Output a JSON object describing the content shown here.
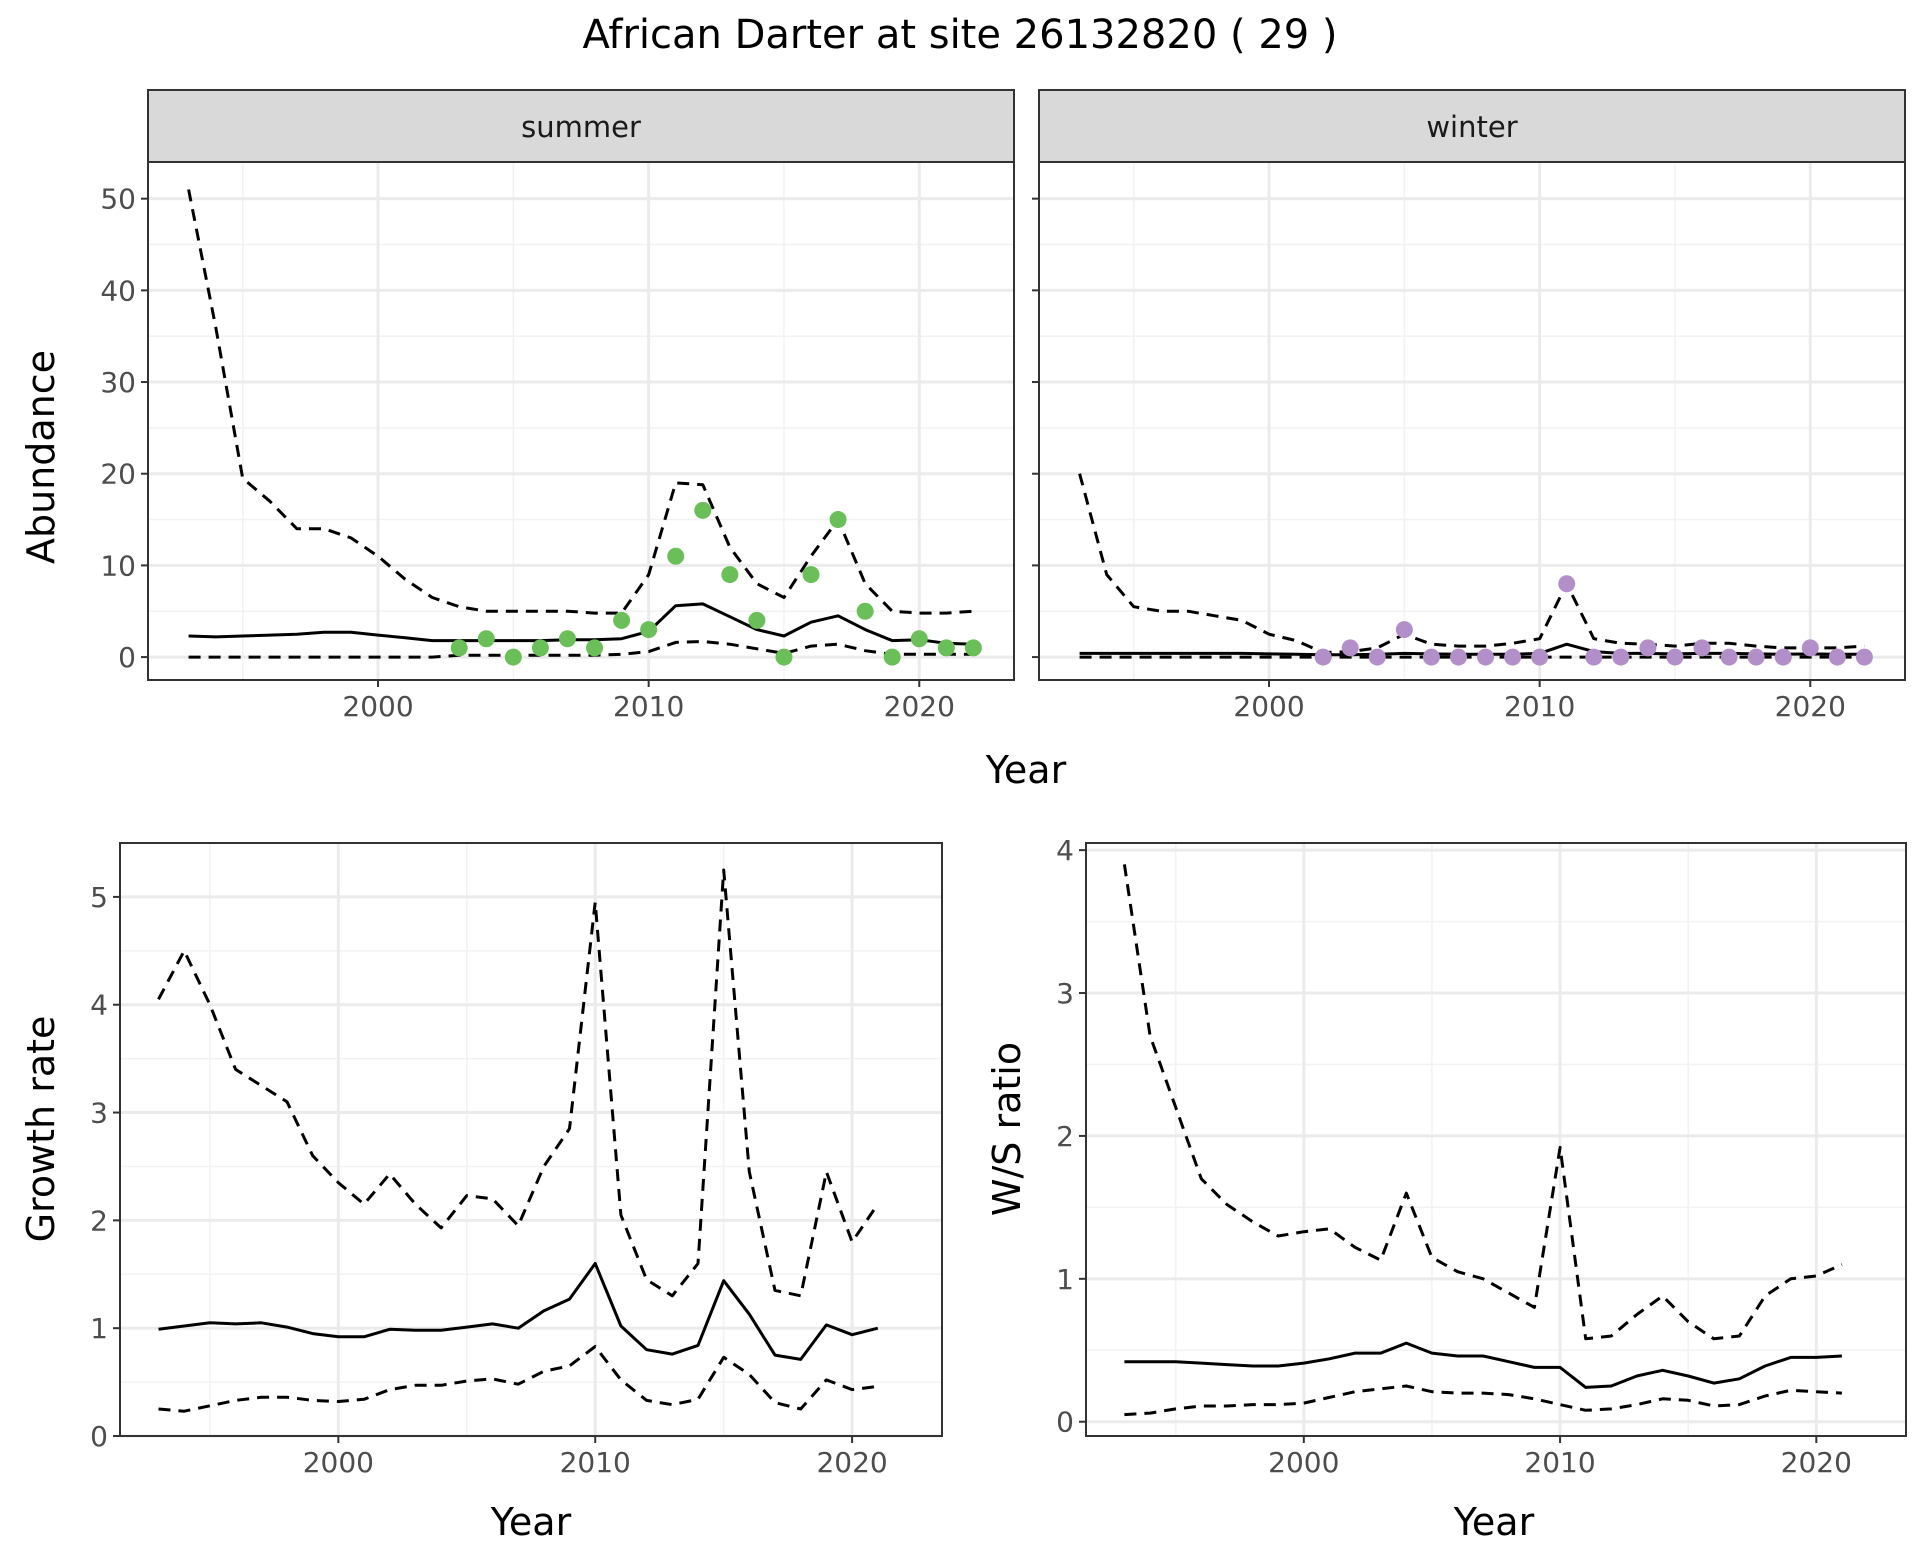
{
  "title": "African Darter at site 26132820 ( 29 )",
  "chart_data": [
    {
      "type": "line",
      "panel": "abundance",
      "strips": [
        "summer",
        "winter"
      ],
      "xlabel": "Year",
      "ylabel": "Abundance",
      "xlim": [
        1991.5,
        2023.5
      ],
      "ylim": [
        -2.5,
        54
      ],
      "xticks": [
        2000,
        2010,
        2020
      ],
      "yticks": [
        0,
        10,
        20,
        30,
        40,
        50
      ],
      "grid": true,
      "facets": [
        {
          "name": "summer",
          "point_color": "#6abf59",
          "x": [
            1993,
            1994,
            1995,
            1996,
            1997,
            1998,
            1999,
            2000,
            2001,
            2002,
            2003,
            2004,
            2005,
            2006,
            2007,
            2008,
            2009,
            2010,
            2011,
            2012,
            2013,
            2014,
            2015,
            2016,
            2017,
            2018,
            2019,
            2020,
            2021,
            2022
          ],
          "mean": [
            2.3,
            2.2,
            2.3,
            2.4,
            2.5,
            2.7,
            2.7,
            2.4,
            2.1,
            1.8,
            1.8,
            1.8,
            1.8,
            1.8,
            1.9,
            1.9,
            2.0,
            2.8,
            5.6,
            5.8,
            4.4,
            3.0,
            2.3,
            3.8,
            4.5,
            3.0,
            1.8,
            1.9,
            1.5,
            1.4
          ],
          "upper": [
            51,
            36,
            19.5,
            17,
            14,
            14,
            13,
            11,
            8.5,
            6.5,
            5.5,
            5.0,
            5.0,
            5.0,
            5.0,
            4.8,
            4.8,
            9.0,
            19.0,
            18.8,
            12.0,
            8.0,
            6.5,
            11.0,
            15.0,
            8.0,
            5.0,
            4.8,
            4.8,
            5.0
          ],
          "lower": [
            0,
            0,
            0,
            0,
            0,
            0,
            0,
            0,
            0,
            0,
            0.2,
            0.2,
            0.2,
            0.2,
            0.2,
            0.2,
            0.3,
            0.6,
            1.6,
            1.7,
            1.4,
            0.9,
            0.4,
            1.2,
            1.4,
            0.7,
            0.3,
            0.3,
            0.3,
            0.3
          ],
          "points_x": [
            2003,
            2004,
            2005,
            2006,
            2007,
            2008,
            2009,
            2010,
            2011,
            2012,
            2013,
            2014,
            2015,
            2016,
            2017,
            2018,
            2019,
            2020,
            2021,
            2022
          ],
          "points_y": [
            1,
            2,
            0,
            1,
            2,
            1,
            4,
            3,
            11,
            16,
            9,
            4,
            0,
            9,
            15,
            5,
            0,
            2,
            1,
            1
          ]
        },
        {
          "name": "winter",
          "point_color": "#b38fc9",
          "x": [
            1993,
            1994,
            1995,
            1996,
            1997,
            1998,
            1999,
            2000,
            2001,
            2002,
            2003,
            2004,
            2005,
            2006,
            2007,
            2008,
            2009,
            2010,
            2011,
            2012,
            2013,
            2014,
            2015,
            2016,
            2017,
            2018,
            2019,
            2020,
            2021,
            2022
          ],
          "mean": [
            0.4,
            0.4,
            0.4,
            0.4,
            0.4,
            0.4,
            0.4,
            0.35,
            0.3,
            0.25,
            0.25,
            0.3,
            0.4,
            0.35,
            0.3,
            0.3,
            0.3,
            0.4,
            1.4,
            0.6,
            0.4,
            0.4,
            0.35,
            0.4,
            0.4,
            0.35,
            0.3,
            0.35,
            0.3,
            0.3
          ],
          "upper": [
            20,
            9,
            5.5,
            5.0,
            5.0,
            4.5,
            4.0,
            2.5,
            1.8,
            0.5,
            0.6,
            1.0,
            2.5,
            1.4,
            1.2,
            1.2,
            1.5,
            2.0,
            8.0,
            2.0,
            1.5,
            1.4,
            1.2,
            1.5,
            1.5,
            1.2,
            1.0,
            1.0,
            1.0,
            1.2
          ],
          "lower": [
            0,
            0,
            0,
            0,
            0,
            0,
            0,
            0,
            0,
            0,
            0,
            0,
            0,
            0,
            0,
            0,
            0,
            0,
            0,
            0,
            0,
            0,
            0,
            0,
            0,
            0,
            0,
            0,
            0,
            0
          ],
          "points_x": [
            2002,
            2003,
            2004,
            2005,
            2006,
            2007,
            2008,
            2009,
            2010,
            2011,
            2012,
            2013,
            2014,
            2015,
            2016,
            2017,
            2018,
            2019,
            2020,
            2021,
            2022
          ],
          "points_y": [
            0,
            1,
            0,
            3,
            0,
            0,
            0,
            0,
            0,
            8,
            0,
            0,
            1,
            0,
            1,
            0,
            0,
            0,
            1,
            0,
            0
          ]
        }
      ]
    },
    {
      "type": "line",
      "panel": "growth",
      "xlabel": "Year",
      "ylabel": "Growth rate",
      "xlim": [
        1991.5,
        2023.5
      ],
      "ylim": [
        0,
        5.5
      ],
      "xticks": [
        2000,
        2010,
        2020
      ],
      "yticks": [
        0,
        1,
        2,
        3,
        4,
        5
      ],
      "grid": true,
      "x": [
        1993,
        1994,
        1995,
        1996,
        1997,
        1998,
        1999,
        2000,
        2001,
        2002,
        2003,
        2004,
        2005,
        2006,
        2007,
        2008,
        2009,
        2010,
        2011,
        2012,
        2013,
        2014,
        2015,
        2016,
        2017,
        2018,
        2019,
        2020,
        2021
      ],
      "series": [
        {
          "name": "",
          "style": "solid",
          "values": [
            0.99,
            1.02,
            1.05,
            1.04,
            1.05,
            1.01,
            0.95,
            0.92,
            0.92,
            0.99,
            0.98,
            0.98,
            1.01,
            1.04,
            1.0,
            1.16,
            1.27,
            1.6,
            1.02,
            0.8,
            0.76,
            0.84,
            1.44,
            1.13,
            0.75,
            0.71,
            1.03,
            0.94,
            1.0
          ]
        },
        {
          "name": "",
          "style": "dashed",
          "values": [
            4.05,
            4.5,
            4.0,
            3.4,
            3.25,
            3.1,
            2.6,
            2.35,
            2.15,
            2.43,
            2.15,
            1.93,
            2.23,
            2.2,
            1.95,
            2.5,
            2.85,
            4.95,
            2.05,
            1.45,
            1.3,
            1.6,
            5.25,
            2.45,
            1.35,
            1.3,
            2.45,
            1.8,
            2.15
          ]
        },
        {
          "name": "",
          "style": "dashed",
          "values": [
            0.25,
            0.23,
            0.28,
            0.33,
            0.36,
            0.36,
            0.33,
            0.32,
            0.34,
            0.43,
            0.47,
            0.47,
            0.51,
            0.53,
            0.48,
            0.6,
            0.65,
            0.83,
            0.52,
            0.33,
            0.29,
            0.34,
            0.73,
            0.57,
            0.31,
            0.25,
            0.52,
            0.43,
            0.46
          ]
        }
      ]
    },
    {
      "type": "line",
      "panel": "ws_ratio",
      "xlabel": "Year",
      "ylabel": "W/S ratio",
      "xlim": [
        1991.5,
        2023.5
      ],
      "ylim": [
        -0.1,
        4.05
      ],
      "xticks": [
        2000,
        2010,
        2020
      ],
      "yticks": [
        0,
        1,
        2,
        3,
        4
      ],
      "grid": true,
      "x": [
        1993,
        1994,
        1995,
        1996,
        1997,
        1998,
        1999,
        2000,
        2001,
        2002,
        2003,
        2004,
        2005,
        2006,
        2007,
        2008,
        2009,
        2010,
        2011,
        2012,
        2013,
        2014,
        2015,
        2016,
        2017,
        2018,
        2019,
        2020,
        2021
      ],
      "series": [
        {
          "name": "",
          "style": "solid",
          "values": [
            0.42,
            0.42,
            0.42,
            0.41,
            0.4,
            0.39,
            0.39,
            0.41,
            0.44,
            0.48,
            0.48,
            0.55,
            0.48,
            0.46,
            0.46,
            0.42,
            0.38,
            0.38,
            0.24,
            0.25,
            0.32,
            0.36,
            0.32,
            0.27,
            0.3,
            0.39,
            0.45,
            0.45,
            0.46
          ]
        },
        {
          "name": "",
          "style": "dashed",
          "values": [
            3.9,
            2.7,
            2.2,
            1.7,
            1.52,
            1.4,
            1.3,
            1.33,
            1.35,
            1.22,
            1.13,
            1.6,
            1.15,
            1.05,
            1.0,
            0.9,
            0.8,
            1.92,
            0.58,
            0.6,
            0.75,
            0.88,
            0.7,
            0.58,
            0.6,
            0.88,
            1.0,
            1.02,
            1.1
          ]
        },
        {
          "name": "",
          "style": "dashed",
          "values": [
            0.05,
            0.06,
            0.09,
            0.11,
            0.11,
            0.12,
            0.12,
            0.13,
            0.17,
            0.21,
            0.23,
            0.25,
            0.21,
            0.2,
            0.2,
            0.19,
            0.16,
            0.12,
            0.08,
            0.09,
            0.12,
            0.16,
            0.15,
            0.11,
            0.12,
            0.18,
            0.22,
            0.21,
            0.2
          ]
        }
      ]
    }
  ]
}
